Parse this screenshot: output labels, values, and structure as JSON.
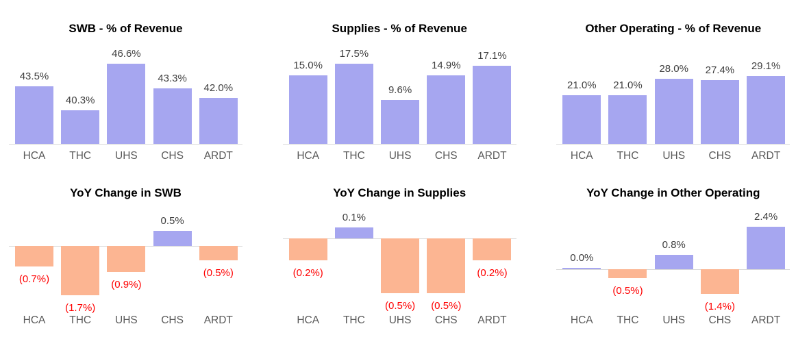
{
  "theme": {
    "background": "#FFFFFF",
    "positive_bar_color": "#A6A6F0",
    "negative_bar_color": "#FCB592",
    "positive_label_color": "#404040",
    "negative_label_color": "#FF0000",
    "category_label_color": "#595959",
    "title_color": "#000000",
    "axis_line_color": "#D9D9D9"
  },
  "chart_data": [
    {
      "type": "bar",
      "title": "SWB - % of Revenue",
      "categories": [
        "HCA",
        "THC",
        "UHS",
        "CHS",
        "ARDT"
      ],
      "values": [
        43.5,
        40.3,
        46.6,
        43.3,
        42.0
      ],
      "labels": [
        "43.5%",
        "40.3%",
        "46.6%",
        "43.3%",
        "42.0%"
      ],
      "xlabel": "",
      "ylabel": "",
      "ylim": [
        35.8,
        47.5
      ],
      "grid": false,
      "legend": false
    },
    {
      "type": "bar",
      "title": "Supplies - % of Revenue",
      "categories": [
        "HCA",
        "THC",
        "UHS",
        "CHS",
        "ARDT"
      ],
      "values": [
        15.0,
        17.5,
        9.6,
        14.9,
        17.1
      ],
      "labels": [
        "15.0%",
        "17.5%",
        "9.6%",
        "14.9%",
        "17.1%"
      ],
      "xlabel": "",
      "ylabel": "",
      "ylim": [
        0,
        19
      ],
      "grid": false,
      "legend": false
    },
    {
      "type": "bar",
      "title": "Other Operating - % of Revenue",
      "categories": [
        "HCA",
        "THC",
        "UHS",
        "CHS",
        "ARDT"
      ],
      "values": [
        21.0,
        21.0,
        28.0,
        27.4,
        29.1
      ],
      "labels": [
        "21.0%",
        "21.0%",
        "28.0%",
        "27.4%",
        "29.1%"
      ],
      "xlabel": "",
      "ylabel": "",
      "ylim": [
        0,
        37.5
      ],
      "grid": false,
      "legend": false
    },
    {
      "type": "bar",
      "title": "YoY Change in SWB",
      "categories": [
        "HCA",
        "THC",
        "UHS",
        "CHS",
        "ARDT"
      ],
      "values": [
        -0.7,
        -1.7,
        -0.9,
        0.5,
        -0.5
      ],
      "labels": [
        "(0.7%)",
        "(1.7%)",
        "(0.9%)",
        "0.5%",
        "(0.5%)"
      ],
      "xlabel": "",
      "ylabel": "",
      "ylim": [
        -2.0,
        1.0
      ],
      "grid": false,
      "legend": false
    },
    {
      "type": "bar",
      "title": "YoY Change in Supplies",
      "categories": [
        "HCA",
        "THC",
        "UHS",
        "CHS",
        "ARDT"
      ],
      "values": [
        -0.2,
        0.1,
        -0.5,
        -0.5,
        -0.2
      ],
      "labels": [
        "(0.2%)",
        "0.1%",
        "(0.5%)",
        "(0.5%)",
        "(0.2%)"
      ],
      "xlabel": "",
      "ylabel": "",
      "ylim": [
        -0.6,
        0.2
      ],
      "grid": false,
      "legend": false
    },
    {
      "type": "bar",
      "title": "YoY Change in Other Operating",
      "categories": [
        "HCA",
        "THC",
        "UHS",
        "CHS",
        "ARDT"
      ],
      "values": [
        0.0,
        -0.5,
        0.8,
        -1.4,
        2.4
      ],
      "labels": [
        "0.0%",
        "(0.5%)",
        "0.8%",
        "(1.4%)",
        "2.4%"
      ],
      "xlabel": "",
      "ylabel": "",
      "ylim": [
        -2.0,
        3.0
      ],
      "grid": false,
      "legend": false
    }
  ]
}
